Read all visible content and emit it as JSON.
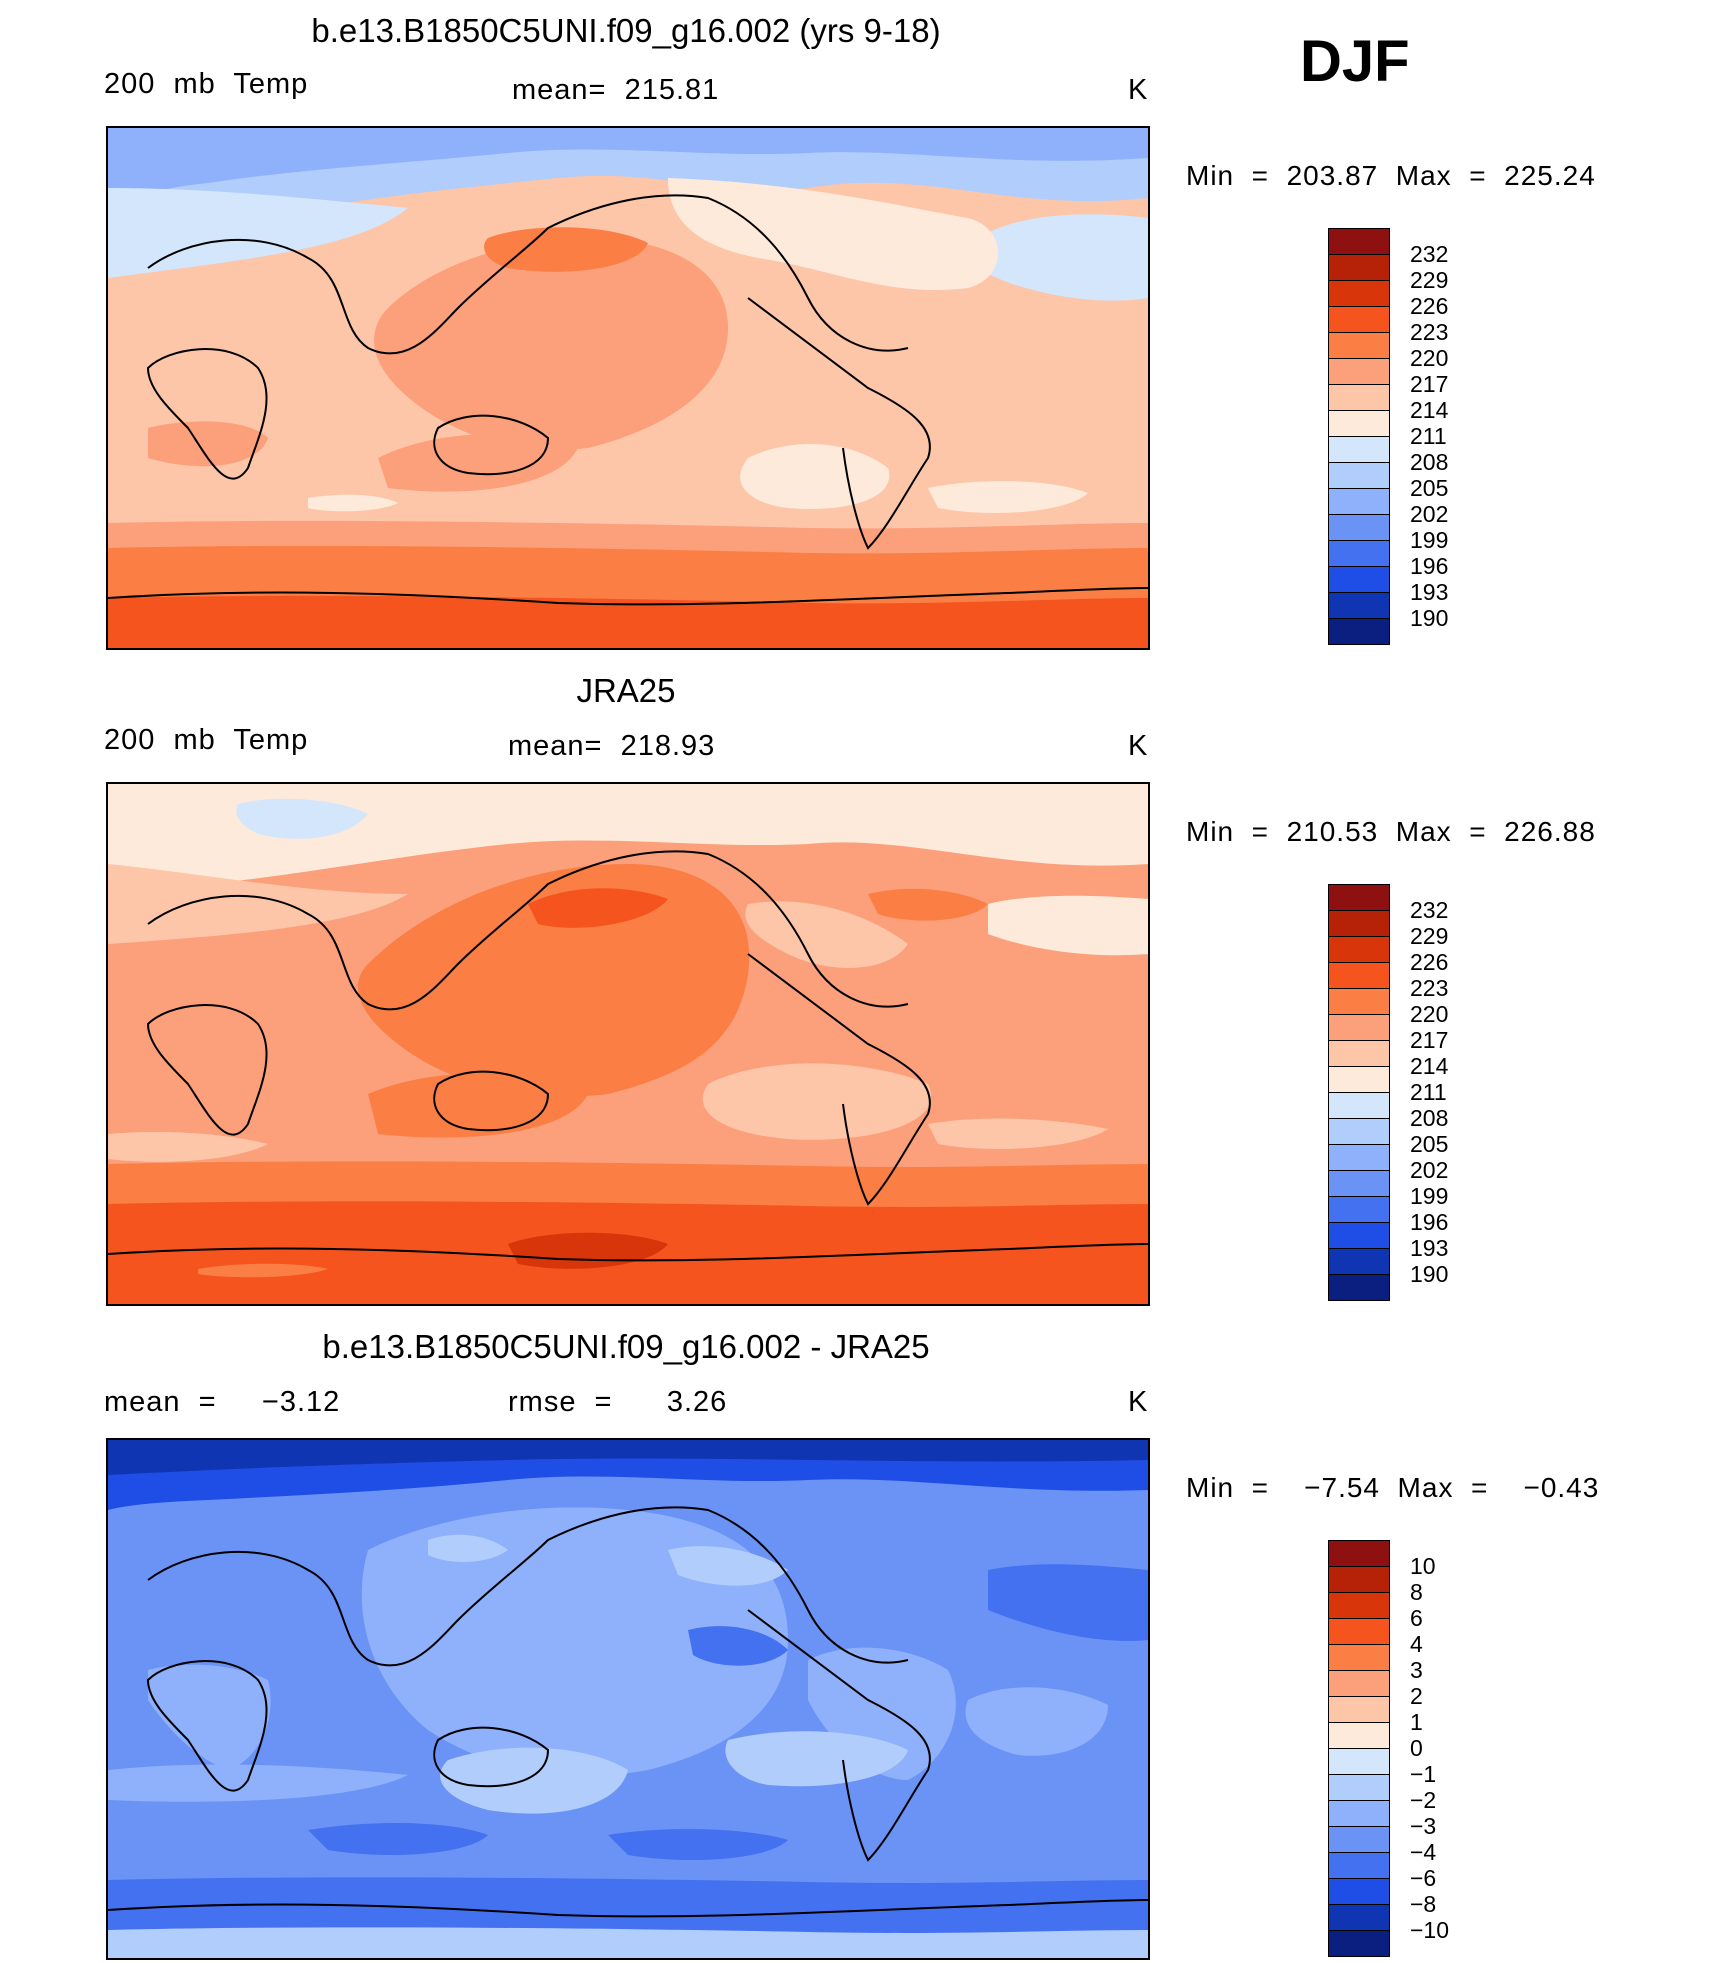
{
  "season": "DJF",
  "panels": [
    {
      "title": "b.e13.B1850C5UNI.f09_g16.002 (yrs 9-18)",
      "left_label": "200  mb  Temp",
      "center_label": "mean=  215.81",
      "units": "K",
      "minmax": "Min  =  203.87  Max  =  225.24",
      "ticks": [
        "232",
        "229",
        "226",
        "223",
        "220",
        "217",
        "214",
        "211",
        "208",
        "205",
        "202",
        "199",
        "196",
        "193",
        "190"
      ]
    },
    {
      "title": "JRA25",
      "left_label": "200  mb  Temp",
      "center_label": "mean=  218.93",
      "units": "K",
      "minmax": "Min  =  210.53  Max  =  226.88",
      "ticks": [
        "232",
        "229",
        "226",
        "223",
        "220",
        "217",
        "214",
        "211",
        "208",
        "205",
        "202",
        "199",
        "196",
        "193",
        "190"
      ]
    },
    {
      "title": "b.e13.B1850C5UNI.f09_g16.002 - JRA25",
      "left_label": "mean  =     −3.12",
      "center_label": "rmse  =      3.26",
      "units": "K",
      "minmax": "Min  =    −7.54  Max  =    −0.43",
      "ticks": [
        "10",
        "8",
        "6",
        "4",
        "3",
        "2",
        "1",
        "0",
        "−1",
        "−2",
        "−3",
        "−4",
        "−6",
        "−8",
        "−10"
      ]
    }
  ],
  "colorbar_colors": [
    "#8e1010",
    "#b52208",
    "#d8350b",
    "#f5541f",
    "#fb7e45",
    "#fca07b",
    "#fdc6a9",
    "#feeadb",
    "#d4e6fb",
    "#b1cdfb",
    "#8fb1fb",
    "#6b93f5",
    "#4371f0",
    "#1f4ee6",
    "#0f35b3",
    "#0a1f80"
  ]
}
